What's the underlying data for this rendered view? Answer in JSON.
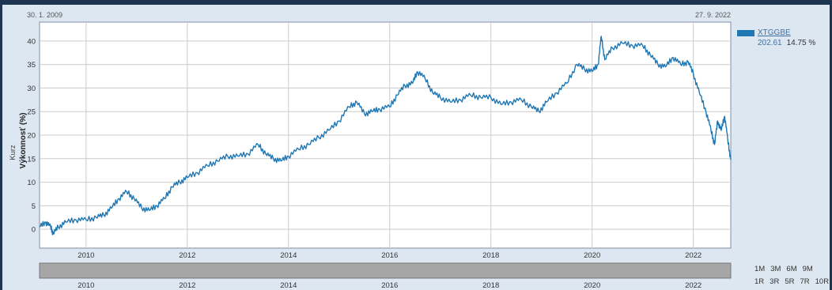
{
  "header": {
    "start_date": "30. 1. 2009",
    "end_date": "27. 9. 2022"
  },
  "legend": {
    "name": "XTGGBE",
    "value": "202.61",
    "percent": "14.75 %",
    "color": "#1f77b4"
  },
  "ranges_row1": [
    "1M",
    "3M",
    "6M",
    "9M"
  ],
  "ranges_row2": [
    "1R",
    "3R",
    "5R",
    "7R",
    "10R"
  ],
  "chart_data": {
    "type": "line",
    "ylabel": "Výkonnosť (%)",
    "ylabel_secondary": "Kurz",
    "ylim": [
      -4,
      44
    ],
    "xlim": [
      2009.08,
      2022.74
    ],
    "yticks": [
      0,
      5,
      10,
      15,
      20,
      25,
      30,
      35,
      40
    ],
    "xticks": [
      "2010",
      "2012",
      "2014",
      "2016",
      "2018",
      "2020",
      "2022"
    ],
    "grid": true,
    "series": [
      {
        "name": "XTGGBE",
        "color": "#1f77b4",
        "points": [
          [
            2009.08,
            0.5
          ],
          [
            2009.2,
            1.5
          ],
          [
            2009.3,
            0.5
          ],
          [
            2009.35,
            -1.0
          ],
          [
            2009.45,
            0.5
          ],
          [
            2009.6,
            1.5
          ],
          [
            2009.8,
            2.0
          ],
          [
            2010.0,
            2.0
          ],
          [
            2010.2,
            2.5
          ],
          [
            2010.35,
            3.0
          ],
          [
            2010.5,
            4.5
          ],
          [
            2010.65,
            6.5
          ],
          [
            2010.8,
            8.0
          ],
          [
            2010.95,
            6.5
          ],
          [
            2011.1,
            4.5
          ],
          [
            2011.25,
            4.0
          ],
          [
            2011.4,
            5.0
          ],
          [
            2011.55,
            6.5
          ],
          [
            2011.7,
            9.0
          ],
          [
            2011.85,
            10.0
          ],
          [
            2012.0,
            11.0
          ],
          [
            2012.2,
            12.0
          ],
          [
            2012.4,
            13.5
          ],
          [
            2012.6,
            14.5
          ],
          [
            2012.8,
            15.5
          ],
          [
            2013.0,
            15.5
          ],
          [
            2013.2,
            16.0
          ],
          [
            2013.4,
            18.0
          ],
          [
            2013.55,
            16.0
          ],
          [
            2013.7,
            15.0
          ],
          [
            2013.85,
            14.5
          ],
          [
            2014.0,
            15.5
          ],
          [
            2014.2,
            17.0
          ],
          [
            2014.4,
            18.0
          ],
          [
            2014.6,
            19.5
          ],
          [
            2014.8,
            21.0
          ],
          [
            2015.0,
            23.0
          ],
          [
            2015.2,
            26.0
          ],
          [
            2015.35,
            27.0
          ],
          [
            2015.5,
            24.5
          ],
          [
            2015.65,
            25.0
          ],
          [
            2015.8,
            25.5
          ],
          [
            2016.0,
            26.0
          ],
          [
            2016.15,
            28.5
          ],
          [
            2016.3,
            30.5
          ],
          [
            2016.45,
            31.0
          ],
          [
            2016.55,
            33.5
          ],
          [
            2016.7,
            32.0
          ],
          [
            2016.85,
            29.0
          ],
          [
            2017.0,
            28.0
          ],
          [
            2017.2,
            27.0
          ],
          [
            2017.4,
            27.5
          ],
          [
            2017.6,
            28.5
          ],
          [
            2017.8,
            28.0
          ],
          [
            2018.0,
            28.0
          ],
          [
            2018.2,
            26.5
          ],
          [
            2018.4,
            27.0
          ],
          [
            2018.6,
            27.5
          ],
          [
            2018.8,
            26.0
          ],
          [
            2018.95,
            25.0
          ],
          [
            2019.1,
            27.0
          ],
          [
            2019.3,
            29.0
          ],
          [
            2019.5,
            31.0
          ],
          [
            2019.7,
            35.0
          ],
          [
            2019.85,
            34.0
          ],
          [
            2020.0,
            33.5
          ],
          [
            2020.12,
            35.0
          ],
          [
            2020.18,
            41.0
          ],
          [
            2020.25,
            36.0
          ],
          [
            2020.4,
            38.5
          ],
          [
            2020.6,
            39.5
          ],
          [
            2020.8,
            39.0
          ],
          [
            2021.0,
            39.0
          ],
          [
            2021.15,
            37.0
          ],
          [
            2021.3,
            35.0
          ],
          [
            2021.45,
            34.5
          ],
          [
            2021.6,
            36.5
          ],
          [
            2021.75,
            35.0
          ],
          [
            2021.9,
            35.5
          ],
          [
            2022.0,
            33.0
          ],
          [
            2022.12,
            29.0
          ],
          [
            2022.25,
            25.0
          ],
          [
            2022.35,
            21.0
          ],
          [
            2022.42,
            18.0
          ],
          [
            2022.48,
            23.0
          ],
          [
            2022.55,
            21.0
          ],
          [
            2022.62,
            24.0
          ],
          [
            2022.68,
            19.0
          ],
          [
            2022.74,
            14.75
          ]
        ]
      }
    ]
  }
}
